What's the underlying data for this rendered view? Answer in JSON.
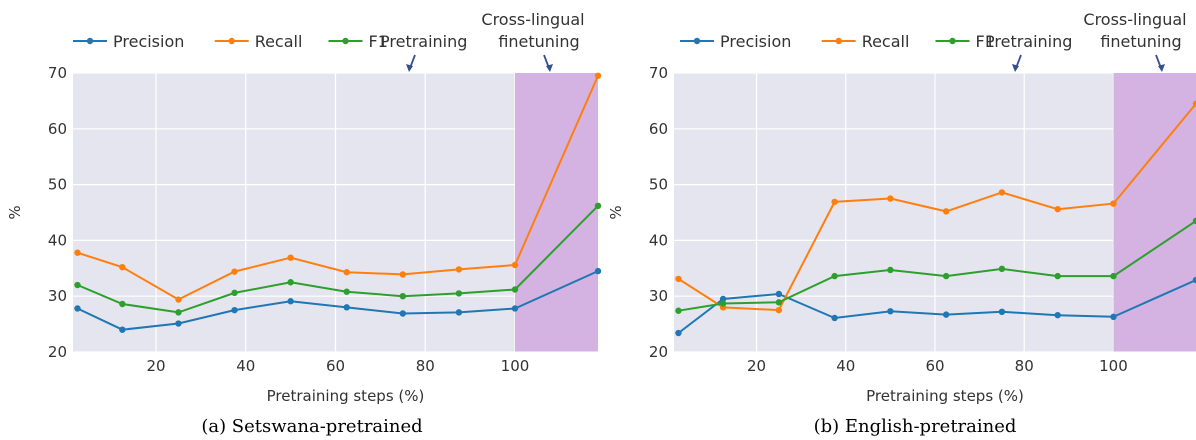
{
  "legend": {
    "precision": "Precision",
    "recall": "Recall",
    "f1": "F1"
  },
  "annotations": {
    "pretraining": "Pretraining",
    "crosslingual_line1": "Cross-lingual",
    "crosslingual_line2": "finetuning"
  },
  "colors": {
    "precision": "#1f77b4",
    "recall": "#ff7f0e",
    "f1": "#2ca02c",
    "plot_bg": "#e5e5ef",
    "finetune_band": "#d4b3e2",
    "arrow": "#36508c"
  },
  "chart_data": [
    {
      "type": "line",
      "caption": "(a) Setswana-pretrained",
      "xlabel": "Pretraining steps (%)",
      "ylabel": "%",
      "xlim": [
        1.5,
        118.5
      ],
      "ylim": [
        20,
        70
      ],
      "xticks": [
        20,
        40,
        60,
        80,
        100
      ],
      "yticks": [
        20,
        30,
        40,
        50,
        60,
        70
      ],
      "finetune_region": [
        100,
        118.5
      ],
      "x": [
        2.5,
        12.5,
        25,
        37.5,
        50,
        62.5,
        75,
        87.5,
        100,
        118.5
      ],
      "series": [
        {
          "name": "Precision",
          "values": [
            27.8,
            24.0,
            25.1,
            27.5,
            29.1,
            28.0,
            26.9,
            27.1,
            27.8,
            34.5
          ]
        },
        {
          "name": "Recall",
          "values": [
            37.8,
            35.2,
            29.4,
            34.4,
            36.9,
            34.3,
            33.9,
            34.8,
            35.6,
            69.5
          ]
        },
        {
          "name": "F1",
          "values": [
            32.0,
            28.6,
            27.1,
            30.6,
            32.5,
            30.8,
            30.0,
            30.5,
            31.2,
            46.2
          ]
        }
      ]
    },
    {
      "type": "line",
      "caption": "(b) English-pretrained",
      "xlabel": "Pretraining steps (%)",
      "ylabel": "%",
      "xlim": [
        1.5,
        118.5
      ],
      "ylim": [
        20,
        70
      ],
      "xticks": [
        20,
        40,
        60,
        80,
        100
      ],
      "yticks": [
        20,
        30,
        40,
        50,
        60,
        70
      ],
      "finetune_region": [
        100,
        118.5
      ],
      "x": [
        2.5,
        12.5,
        25,
        37.5,
        50,
        62.5,
        75,
        87.5,
        100,
        118.5
      ],
      "series": [
        {
          "name": "Precision",
          "values": [
            23.4,
            29.5,
            30.4,
            26.1,
            27.3,
            26.7,
            27.2,
            26.6,
            26.3,
            32.9
          ]
        },
        {
          "name": "Recall",
          "values": [
            33.1,
            28.0,
            27.5,
            46.9,
            47.5,
            45.2,
            48.6,
            45.6,
            46.6,
            64.5
          ]
        },
        {
          "name": "F1",
          "values": [
            27.4,
            28.7,
            28.9,
            33.6,
            34.7,
            33.6,
            34.9,
            33.6,
            33.6,
            43.5
          ]
        }
      ]
    }
  ]
}
